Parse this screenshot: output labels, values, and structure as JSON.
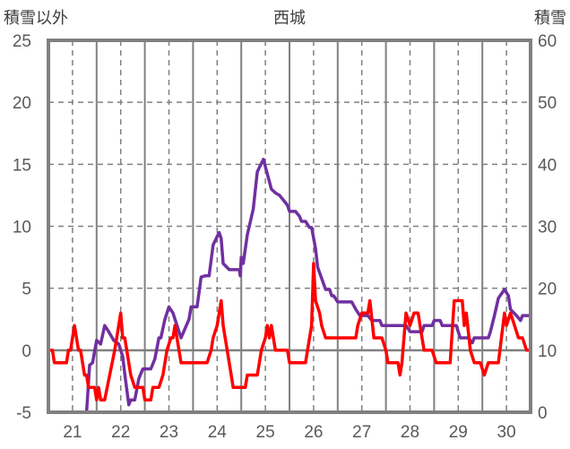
{
  "chart_data": {
    "type": "line",
    "title": "西城",
    "ylabel_left": "積雪以外",
    "ylabel_right": "積雪",
    "xlabel": "",
    "x_unit": "hours from day 21 00:00",
    "x_range": [
      0,
      240
    ],
    "x_tick_labels": [
      "21",
      "22",
      "23",
      "24",
      "25",
      "26",
      "27",
      "28",
      "29",
      "30"
    ],
    "ylim_left": [
      -5,
      25
    ],
    "yticks_left": [
      "-5",
      "0",
      "5",
      "10",
      "15",
      "20",
      "25"
    ],
    "ylim_right": [
      0,
      60
    ],
    "yticks_right": [
      "0",
      "10",
      "20",
      "30",
      "40",
      "50",
      "60"
    ],
    "grid": true,
    "colors": {
      "red_series": "#ff0000",
      "purple_series": "#7030a0",
      "frame": "#808080"
    },
    "series": [
      {
        "name": "積雪以外",
        "axis": "left",
        "color": "#ff0000",
        "points": [
          [
            0,
            0
          ],
          [
            2,
            0
          ],
          [
            3,
            -1
          ],
          [
            9,
            -1
          ],
          [
            10,
            0
          ],
          [
            11,
            0
          ],
          [
            13,
            2
          ],
          [
            15,
            0
          ],
          [
            16,
            0
          ],
          [
            18,
            -2
          ],
          [
            19,
            -2
          ],
          [
            20,
            -3
          ],
          [
            23,
            -3
          ],
          [
            24,
            -4
          ],
          [
            25,
            -3
          ],
          [
            26,
            -4
          ],
          [
            28,
            -4
          ],
          [
            33,
            0
          ],
          [
            36,
            3
          ],
          [
            37,
            1
          ],
          [
            38,
            1
          ],
          [
            40,
            -1
          ],
          [
            41,
            -2
          ],
          [
            43,
            -3
          ],
          [
            47,
            -3
          ],
          [
            48,
            -4
          ],
          [
            51,
            -4
          ],
          [
            52,
            -3
          ],
          [
            55,
            -3
          ],
          [
            57,
            -2
          ],
          [
            59,
            0
          ],
          [
            61,
            1
          ],
          [
            62,
            1
          ],
          [
            63,
            2
          ],
          [
            65,
            0
          ],
          [
            66,
            -1
          ],
          [
            79,
            -1
          ],
          [
            81,
            0
          ],
          [
            82,
            1
          ],
          [
            84,
            2
          ],
          [
            86,
            4
          ],
          [
            87,
            2
          ],
          [
            89,
            0
          ],
          [
            92,
            -3
          ],
          [
            98,
            -3
          ],
          [
            99,
            -2
          ],
          [
            104,
            -2
          ],
          [
            105,
            -1
          ],
          [
            106,
            0
          ],
          [
            108,
            1
          ],
          [
            109,
            2
          ],
          [
            110,
            1
          ],
          [
            111,
            2
          ],
          [
            113,
            0
          ],
          [
            119,
            0
          ],
          [
            120,
            -1
          ],
          [
            128,
            -1
          ],
          [
            130,
            1
          ],
          [
            131,
            2
          ],
          [
            132,
            7
          ],
          [
            133,
            4
          ],
          [
            135,
            3
          ],
          [
            136,
            2
          ],
          [
            138,
            1
          ],
          [
            153,
            1
          ],
          [
            154,
            2
          ],
          [
            156,
            3
          ],
          [
            159,
            3
          ],
          [
            160,
            4
          ],
          [
            162,
            1
          ],
          [
            166,
            1
          ],
          [
            168,
            0
          ],
          [
            169,
            -1
          ],
          [
            174,
            -1
          ],
          [
            175,
            -2
          ],
          [
            176,
            -1
          ],
          [
            178,
            3
          ],
          [
            180,
            2
          ],
          [
            182,
            3
          ],
          [
            184,
            3
          ],
          [
            186,
            1
          ],
          [
            187,
            0
          ],
          [
            191,
            0
          ],
          [
            193,
            -1
          ],
          [
            200,
            -1
          ],
          [
            202,
            4
          ],
          [
            206,
            4
          ],
          [
            207,
            2
          ],
          [
            208,
            3
          ],
          [
            210,
            0
          ],
          [
            212,
            -1
          ],
          [
            215,
            -1
          ],
          [
            217,
            -2
          ],
          [
            219,
            -1
          ],
          [
            224,
            -1
          ],
          [
            227,
            3
          ],
          [
            228,
            2
          ],
          [
            230,
            3
          ],
          [
            232,
            2
          ],
          [
            234,
            1
          ],
          [
            236,
            1
          ],
          [
            238,
            0
          ],
          [
            240,
            0
          ]
        ]
      },
      {
        "name": "積雪",
        "axis": "right",
        "color": "#7030a0",
        "points": [
          [
            0,
            0
          ],
          [
            19,
            0
          ],
          [
            20.5,
            7.6
          ],
          [
            22,
            8
          ],
          [
            24,
            11.6
          ],
          [
            26,
            11
          ],
          [
            28,
            14
          ],
          [
            30,
            13
          ],
          [
            32.5,
            11.6
          ],
          [
            35,
            11
          ],
          [
            37,
            9
          ],
          [
            38,
            6.2
          ],
          [
            40,
            1.2
          ],
          [
            41,
            2
          ],
          [
            43,
            2
          ],
          [
            45,
            5.4
          ],
          [
            47,
            7
          ],
          [
            51,
            7
          ],
          [
            53,
            8.6
          ],
          [
            55,
            12
          ],
          [
            56,
            12
          ],
          [
            58,
            15
          ],
          [
            60,
            17
          ],
          [
            62,
            16
          ],
          [
            64,
            14
          ],
          [
            66,
            12
          ],
          [
            70,
            15
          ],
          [
            71,
            17
          ],
          [
            74,
            17
          ],
          [
            76,
            21.8
          ],
          [
            78,
            22
          ],
          [
            80,
            22
          ],
          [
            82,
            27
          ],
          [
            85,
            29
          ],
          [
            86,
            28
          ],
          [
            87,
            24
          ],
          [
            90,
            23
          ],
          [
            95,
            23
          ],
          [
            95.5,
            22
          ],
          [
            96,
            25
          ],
          [
            97,
            24
          ],
          [
            99,
            28.6
          ],
          [
            102,
            32.8
          ],
          [
            104,
            38.8
          ],
          [
            107,
            40.8
          ],
          [
            111,
            36
          ],
          [
            113,
            35.4
          ],
          [
            115,
            35
          ],
          [
            117,
            34.2
          ],
          [
            119,
            33.4
          ],
          [
            120,
            32.4
          ],
          [
            123,
            32.4
          ],
          [
            125,
            31.6
          ],
          [
            126,
            30.8
          ],
          [
            128,
            30.8
          ],
          [
            130,
            29.8
          ],
          [
            131,
            29.8
          ],
          [
            133,
            26.4
          ],
          [
            134,
            23.4
          ],
          [
            136,
            21.6
          ],
          [
            138,
            19.8
          ],
          [
            140,
            19.8
          ],
          [
            141,
            18.8
          ],
          [
            142,
            18.8
          ],
          [
            144,
            17.8
          ],
          [
            151,
            17.8
          ],
          [
            153,
            16.6
          ],
          [
            155,
            15.6
          ],
          [
            159,
            15.6
          ],
          [
            161,
            14.8
          ],
          [
            165,
            14.8
          ],
          [
            166,
            14
          ],
          [
            178,
            14
          ],
          [
            180,
            13
          ],
          [
            186,
            13
          ],
          [
            187,
            14
          ],
          [
            191,
            14
          ],
          [
            192,
            14.8
          ],
          [
            195,
            14.8
          ],
          [
            196,
            14
          ],
          [
            203,
            14
          ],
          [
            205,
            12
          ],
          [
            209,
            12
          ],
          [
            211,
            11.2
          ],
          [
            212,
            12
          ],
          [
            219,
            12
          ],
          [
            220,
            13
          ],
          [
            222,
            15.6
          ],
          [
            224,
            18.4
          ],
          [
            227,
            19.8
          ],
          [
            229,
            18.8
          ],
          [
            230,
            16.6
          ],
          [
            233,
            15.6
          ],
          [
            235,
            14.8
          ],
          [
            236,
            15.6
          ],
          [
            240,
            15.6
          ]
        ]
      }
    ]
  }
}
